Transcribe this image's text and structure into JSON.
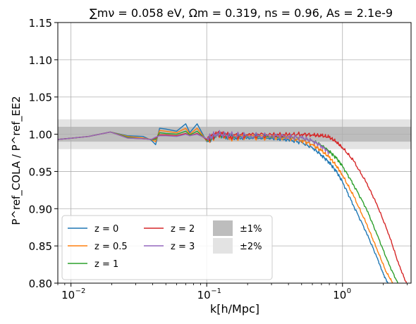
{
  "chart_data": {
    "type": "line",
    "title": "∑mν = 0.058 eV, Ωm = 0.319, ns = 0.96, As = 2.1e-9",
    "xlabel": "k[h/Mpc]",
    "ylabel": "P^ref_COLA / P^ref_EE2",
    "xscale": "log",
    "xlim": [
      0.008,
      3.2
    ],
    "ylim": [
      0.8,
      1.15
    ],
    "x_ticks": [
      {
        "value": 0.01,
        "label": "10",
        "exp": "−2"
      },
      {
        "value": 0.1,
        "label": "10",
        "exp": "−1"
      },
      {
        "value": 1,
        "label": "10",
        "exp": "0"
      }
    ],
    "y_ticks": [
      {
        "value": 0.8,
        "label": "0.80"
      },
      {
        "value": 0.85,
        "label": "0.85"
      },
      {
        "value": 0.9,
        "label": "0.90"
      },
      {
        "value": 0.95,
        "label": "0.95"
      },
      {
        "value": 1.0,
        "label": "1.00"
      },
      {
        "value": 1.05,
        "label": "1.05"
      },
      {
        "value": 1.1,
        "label": "1.10"
      },
      {
        "value": 1.15,
        "label": "1.15"
      }
    ],
    "grid": true,
    "bands": [
      {
        "name": "±1%",
        "lower": 0.99,
        "upper": 1.01,
        "color": "#bdbdbd"
      },
      {
        "name": "±2%",
        "lower": 0.98,
        "upper": 1.02,
        "color": "#e3e3e3"
      }
    ],
    "legend_position": "lower-left",
    "series": [
      {
        "name": "z = 0",
        "color": "#1f77b4",
        "x": [
          0.008,
          0.0135,
          0.0195,
          0.026,
          0.034,
          0.039,
          0.042,
          0.045,
          0.05,
          0.06,
          0.07,
          0.075,
          0.085,
          0.1,
          0.12,
          0.15,
          0.2,
          0.3,
          0.4,
          0.5,
          0.6,
          0.7,
          0.8,
          0.9,
          1.0,
          1.2,
          1.5,
          1.8,
          2.0,
          2.2
        ],
        "y": [
          0.993,
          0.997,
          1.003,
          0.998,
          0.997,
          0.992,
          0.986,
          1.008,
          1.007,
          1.004,
          1.014,
          1.002,
          1.014,
          0.99,
          1.0,
          0.995,
          0.996,
          0.995,
          0.993,
          0.989,
          0.982,
          0.972,
          0.962,
          0.95,
          0.936,
          0.905,
          0.868,
          0.834,
          0.812,
          0.797
        ]
      },
      {
        "name": "z = 0.5",
        "color": "#ff7f0e",
        "x": [
          0.008,
          0.0135,
          0.0195,
          0.026,
          0.034,
          0.039,
          0.042,
          0.045,
          0.05,
          0.06,
          0.07,
          0.075,
          0.085,
          0.1,
          0.12,
          0.15,
          0.2,
          0.3,
          0.4,
          0.5,
          0.6,
          0.7,
          0.8,
          0.9,
          1.0,
          1.2,
          1.5,
          1.8,
          2.1,
          2.4
        ],
        "y": [
          0.993,
          0.997,
          1.003,
          0.997,
          0.995,
          0.993,
          0.99,
          1.005,
          1.004,
          1.002,
          1.008,
          1.0,
          1.008,
          0.991,
          1.0,
          0.996,
          0.997,
          0.996,
          0.995,
          0.992,
          0.986,
          0.978,
          0.969,
          0.958,
          0.945,
          0.918,
          0.88,
          0.845,
          0.815,
          0.797
        ]
      },
      {
        "name": "z = 1",
        "color": "#2ca02c",
        "x": [
          0.008,
          0.0135,
          0.0195,
          0.026,
          0.034,
          0.039,
          0.042,
          0.045,
          0.05,
          0.06,
          0.07,
          0.075,
          0.085,
          0.1,
          0.12,
          0.15,
          0.2,
          0.3,
          0.4,
          0.5,
          0.6,
          0.7,
          0.8,
          0.9,
          1.0,
          1.2,
          1.5,
          1.8,
          2.2,
          2.6
        ],
        "y": [
          0.993,
          0.997,
          1.003,
          0.996,
          0.994,
          0.993,
          0.993,
          1.002,
          1.001,
          1.0,
          1.004,
          0.999,
          1.004,
          0.992,
          1.0,
          0.997,
          0.998,
          0.997,
          0.997,
          0.995,
          0.991,
          0.985,
          0.977,
          0.968,
          0.957,
          0.933,
          0.9,
          0.865,
          0.825,
          0.797
        ]
      },
      {
        "name": "z = 2",
        "color": "#d62728",
        "x": [
          0.008,
          0.0135,
          0.0195,
          0.026,
          0.034,
          0.039,
          0.042,
          0.045,
          0.05,
          0.06,
          0.07,
          0.075,
          0.085,
          0.1,
          0.12,
          0.15,
          0.2,
          0.3,
          0.4,
          0.5,
          0.6,
          0.7,
          0.8,
          0.9,
          1.0,
          1.2,
          1.5,
          1.8,
          2.2,
          2.6,
          3.0
        ],
        "y": [
          0.993,
          0.997,
          1.003,
          0.995,
          0.994,
          0.993,
          0.995,
          0.999,
          0.999,
          0.998,
          1.001,
          0.998,
          1.001,
          0.993,
          1.001,
          0.998,
          0.999,
          0.999,
          0.999,
          1.0,
          0.999,
          0.998,
          0.996,
          0.99,
          0.982,
          0.965,
          0.935,
          0.905,
          0.865,
          0.825,
          0.797
        ]
      },
      {
        "name": "z = 3",
        "color": "#9467bd",
        "x": [
          0.008,
          0.0135,
          0.0195,
          0.026,
          0.034,
          0.039,
          0.042,
          0.045,
          0.05,
          0.06,
          0.07,
          0.075,
          0.085,
          0.1,
          0.12,
          0.15,
          0.2,
          0.3,
          0.4,
          0.5,
          0.6,
          0.7,
          0.8
        ],
        "y": [
          0.993,
          0.997,
          1.003,
          0.995,
          0.994,
          0.993,
          0.996,
          0.998,
          0.998,
          0.997,
          1.0,
          0.998,
          1.0,
          0.994,
          1.001,
          0.998,
          0.998,
          0.998,
          0.997,
          0.995,
          0.991,
          0.984,
          0.975
        ]
      }
    ]
  }
}
